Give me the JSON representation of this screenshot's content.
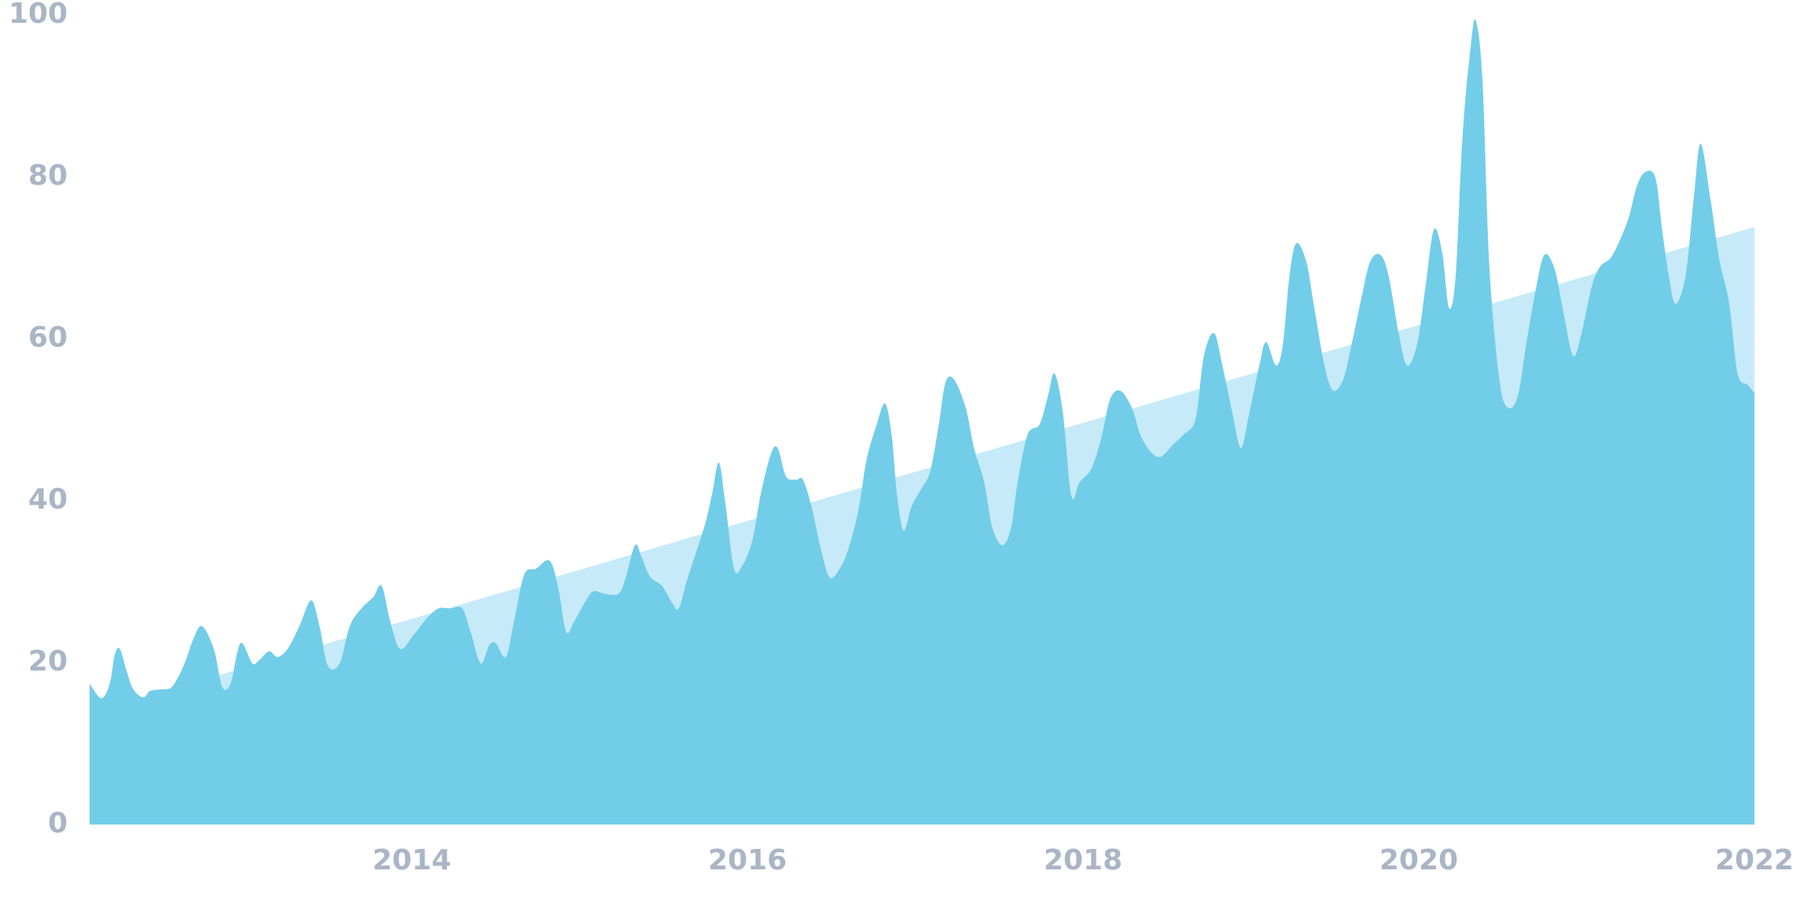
{
  "chart_data": {
    "type": "area",
    "xlim": [
      2012.08,
      2022
    ],
    "xticks": [
      2014,
      2016,
      2018,
      2020,
      2022
    ],
    "ylim": [
      0,
      100
    ],
    "yticks": [
      0,
      20,
      40,
      60,
      80,
      100
    ],
    "grid": false,
    "series": [
      {
        "color": "#c6eaf8",
        "x": [
          2012.08,
          2022
        ],
        "values": [
          13.8,
          73.8
        ]
      },
      {
        "color": "#72cde9",
        "x": [
          2012.08,
          2012.15,
          2012.2,
          2012.23,
          2012.26,
          2012.3,
          2012.34,
          2012.4,
          2012.44,
          2012.5,
          2012.57,
          2012.64,
          2012.7,
          2012.75,
          2012.82,
          2012.87,
          2012.92,
          2012.96,
          2012.99,
          2013.05,
          2013.09,
          2013.15,
          2013.2,
          2013.26,
          2013.33,
          2013.4,
          2013.45,
          2013.5,
          2013.57,
          2013.63,
          2013.7,
          2013.77,
          2013.82,
          2013.87,
          2013.93,
          2014.01,
          2014.09,
          2014.16,
          2014.23,
          2014.3,
          2014.35,
          2014.41,
          2014.46,
          2014.5,
          2014.56,
          2014.61,
          2014.67,
          2014.74,
          2014.82,
          2014.87,
          2014.92,
          2014.97,
          2015.03,
          2015.08,
          2015.15,
          2015.23,
          2015.27,
          2015.33,
          2015.37,
          2015.42,
          2015.49,
          2015.55,
          2015.59,
          2015.64,
          2015.7,
          2015.75,
          2015.79,
          2015.83,
          2015.87,
          2015.92,
          2015.97,
          2016.03,
          2016.08,
          2016.14,
          2016.18,
          2016.23,
          2016.29,
          2016.33,
          2016.38,
          2016.44,
          2016.49,
          2016.55,
          2016.6,
          2016.66,
          2016.71,
          2016.77,
          2016.82,
          2016.86,
          2016.89,
          2016.93,
          2016.98,
          2017.04,
          2017.09,
          2017.14,
          2017.18,
          2017.23,
          2017.3,
          2017.35,
          2017.41,
          2017.46,
          2017.52,
          2017.57,
          2017.61,
          2017.67,
          2017.74,
          2017.79,
          2017.83,
          2017.88,
          2017.93,
          2017.98,
          2018.05,
          2018.11,
          2018.16,
          2018.22,
          2018.29,
          2018.34,
          2018.4,
          2018.46,
          2018.53,
          2018.6,
          2018.67,
          2018.72,
          2018.78,
          2018.83,
          2018.89,
          2018.94,
          2018.99,
          2019.05,
          2019.09,
          2019.15,
          2019.19,
          2019.23,
          2019.27,
          2019.33,
          2019.38,
          2019.44,
          2019.49,
          2019.55,
          2019.6,
          2019.66,
          2019.71,
          2019.77,
          2019.82,
          2019.88,
          2019.93,
          2019.99,
          2020.04,
          2020.09,
          2020.14,
          2020.18,
          2020.22,
          2020.26,
          2020.31,
          2020.34,
          2020.38,
          2020.42,
          2020.48,
          2020.53,
          2020.59,
          2020.64,
          2020.7,
          2020.75,
          2020.81,
          2020.86,
          2020.92,
          2020.97,
          2021.03,
          2021.08,
          2021.14,
          2021.19,
          2021.25,
          2021.3,
          2021.35,
          2021.41,
          2021.45,
          2021.49,
          2021.53,
          2021.59,
          2021.64,
          2021.68,
          2021.74,
          2021.79,
          2021.85,
          2021.9,
          2021.96,
          2022
        ],
        "values": [
          17.4,
          15.6,
          17.4,
          21,
          21.7,
          19,
          16.7,
          15.7,
          16.5,
          16.7,
          17,
          19.6,
          23,
          24.5,
          21.7,
          17,
          17.4,
          21.3,
          22.4,
          19.9,
          20.3,
          21.4,
          20.7,
          21.7,
          24.5,
          27.7,
          24.5,
          19.6,
          19.9,
          24.5,
          26.7,
          28.1,
          29.5,
          25.2,
          21.7,
          23.4,
          25.5,
          26.7,
          26.7,
          26.7,
          23.8,
          19.9,
          22.1,
          22.4,
          20.7,
          25.2,
          30.9,
          31.6,
          32.6,
          29.5,
          23.8,
          25.2,
          27.4,
          28.8,
          28.5,
          28.5,
          30.2,
          34.5,
          33,
          30.6,
          29.5,
          27.4,
          26.7,
          30.2,
          34,
          37.3,
          40.9,
          44.7,
          39.4,
          31.6,
          32,
          35.2,
          40.9,
          45.8,
          46.5,
          43,
          42.6,
          42.6,
          39.4,
          33.8,
          30.5,
          31.6,
          34,
          38.7,
          45.1,
          49.4,
          52,
          48,
          40.9,
          36.3,
          39.4,
          41.6,
          43.7,
          49.4,
          54.6,
          55,
          51.5,
          46.5,
          42.3,
          36.6,
          34.5,
          36.6,
          42.3,
          48.2,
          49.4,
          52.9,
          55.7,
          50.8,
          40.6,
          42.3,
          44,
          47.9,
          52.5,
          53.6,
          51.5,
          48.2,
          46.1,
          45.4,
          46.8,
          48.2,
          50.1,
          57.9,
          60.7,
          56.7,
          50.8,
          46.5,
          50.8,
          56.7,
          59.6,
          56.7,
          59.3,
          67.8,
          71.8,
          69.5,
          63.5,
          56.5,
          53.6,
          55,
          59.3,
          65.2,
          69.5,
          70.4,
          67.8,
          60.7,
          56.7,
          59.3,
          66.4,
          73.5,
          70.6,
          63.8,
          67.8,
          84.8,
          96.2,
          99.3,
          91.9,
          69.2,
          55,
          51.5,
          52.9,
          59.3,
          66.4,
          70.4,
          68.6,
          63.5,
          57.9,
          60.7,
          66.4,
          68.9,
          69.9,
          71.8,
          74.9,
          78.9,
          80.6,
          79.9,
          73.5,
          67.8,
          64.3,
          67.8,
          77.7,
          84.1,
          77,
          69.9,
          64.3,
          55.7,
          54.3,
          53.3
        ]
      }
    ]
  }
}
